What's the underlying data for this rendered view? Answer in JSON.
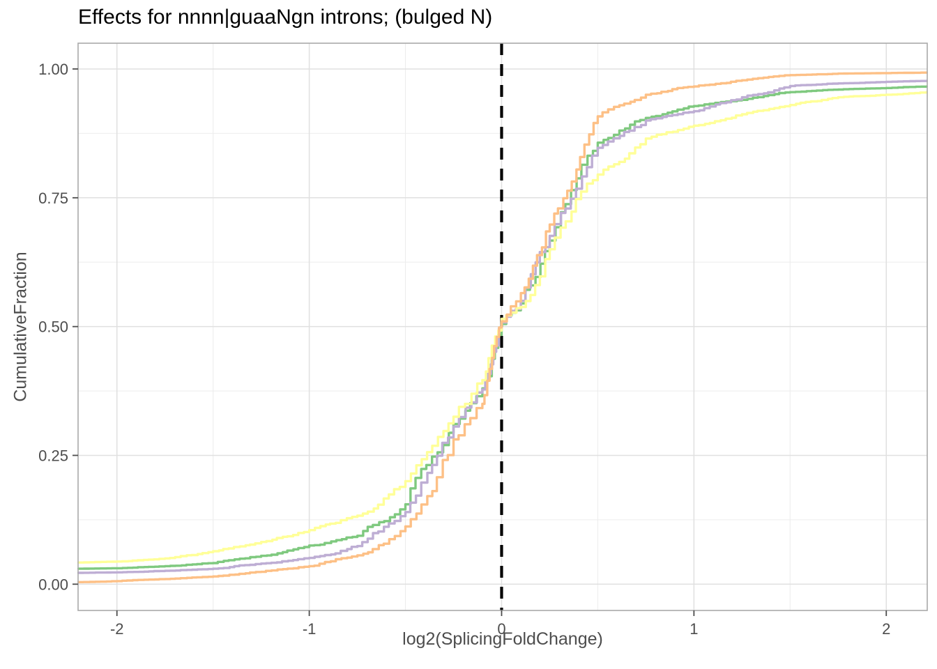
{
  "chart_data": {
    "type": "line",
    "subtype": "ecdf-step-curves",
    "title": "Effects for nnnn|guaaNgn introns; (bulged N)",
    "xlabel": "log2(SplicingFoldChange)",
    "ylabel": "CumulativeFraction",
    "grid": "on",
    "legend": "none",
    "xlim": [
      -2.202,
      2.213
    ],
    "ylim": [
      -0.051,
      1.05
    ],
    "x_ticks": {
      "labels": [
        "-2",
        "-1",
        "0",
        "1",
        "2"
      ],
      "values": [
        -2,
        -1,
        0,
        1,
        2
      ]
    },
    "y_ticks": {
      "labels": [
        "0.00",
        "0.25",
        "0.50",
        "0.75",
        "1.00"
      ],
      "values": [
        0,
        0.25,
        0.5,
        0.75,
        1.0
      ]
    },
    "minor_x": [
      -1.5,
      -0.5,
      0.5,
      1.5
    ],
    "minor_y": [
      0.125,
      0.375,
      0.625,
      0.875
    ],
    "reference_line": {
      "x": 0,
      "style": "dashed",
      "color": "#000000"
    },
    "x": [
      -2.2,
      -2.0,
      -1.75,
      -1.5,
      -1.25,
      -1.0,
      -0.75,
      -0.5,
      -0.25,
      -0.1,
      0.0,
      0.1,
      0.25,
      0.5,
      0.75,
      1.0,
      1.25,
      1.5,
      1.75,
      2.0,
      2.21
    ],
    "series": [
      {
        "name": "green-curve",
        "color": "#7FC97F",
        "values": [
          0.03,
          0.031,
          0.035,
          0.041,
          0.055,
          0.075,
          0.094,
          0.155,
          0.311,
          0.38,
          0.505,
          0.545,
          0.667,
          0.857,
          0.905,
          0.928,
          0.94,
          0.955,
          0.96,
          0.963,
          0.966
        ]
      },
      {
        "name": "purple-curve",
        "color": "#BEAED4",
        "values": [
          0.022,
          0.023,
          0.026,
          0.03,
          0.04,
          0.051,
          0.074,
          0.14,
          0.306,
          0.378,
          0.508,
          0.55,
          0.676,
          0.847,
          0.9,
          0.918,
          0.945,
          0.967,
          0.972,
          0.975,
          0.977
        ]
      },
      {
        "name": "yellow-curve",
        "color": "#FFFF99",
        "values": [
          0.042,
          0.044,
          0.05,
          0.064,
          0.082,
          0.105,
          0.133,
          0.2,
          0.325,
          0.396,
          0.515,
          0.538,
          0.65,
          0.795,
          0.865,
          0.89,
          0.912,
          0.93,
          0.945,
          0.95,
          0.955
        ]
      },
      {
        "name": "orange-curve",
        "color": "#FDC086",
        "values": [
          0.004,
          0.006,
          0.01,
          0.015,
          0.024,
          0.035,
          0.056,
          0.112,
          0.281,
          0.35,
          0.51,
          0.565,
          0.698,
          0.908,
          0.95,
          0.966,
          0.978,
          0.988,
          0.991,
          0.992,
          0.993
        ]
      }
    ],
    "colors": {
      "panel_background": "#FFFFFF",
      "panel_border": "#A9A9A9",
      "grid_major": "#E0E0E0",
      "grid_minor": "#EDEDED",
      "axis_text": "#4D4D4D",
      "tick_mark": "#4D4D4D",
      "title_color": "#000000"
    }
  }
}
